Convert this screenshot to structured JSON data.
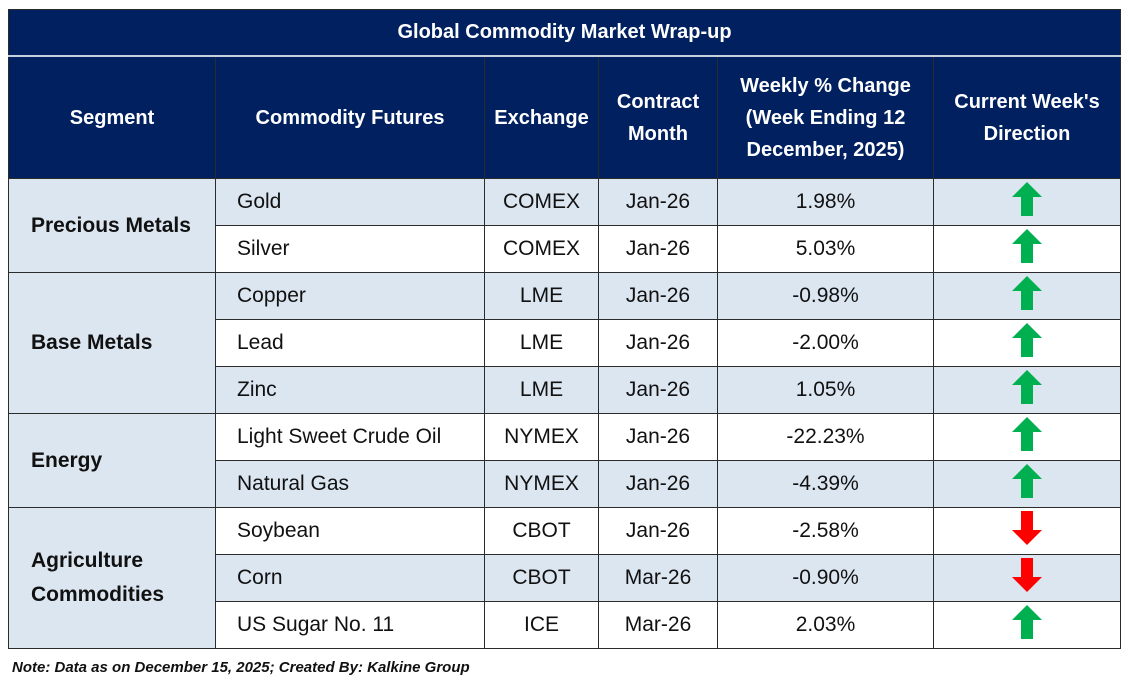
{
  "title": "Global Commodity Market Wrap-up",
  "headers": [
    "Segment",
    "Commodity Futures",
    "Exchange",
    "Contract Month",
    "Weekly % Change (Week Ending  12 December, 2025)",
    "Current Week's Direction"
  ],
  "rows": [
    {
      "segment": "Precious Metals",
      "commodity": "Gold",
      "exchange": "COMEX",
      "month": "Jan-26",
      "change": "1.98%",
      "direction": "up"
    },
    {
      "commodity": "Silver",
      "exchange": "COMEX",
      "month": "Jan-26",
      "change": "5.03%",
      "direction": "up"
    },
    {
      "segment": "Base Metals",
      "commodity": "Copper",
      "exchange": "LME",
      "month": "Jan-26",
      "change": "-0.98%",
      "direction": "up"
    },
    {
      "commodity": "Lead",
      "exchange": "LME",
      "month": "Jan-26",
      "change": "-2.00%",
      "direction": "up"
    },
    {
      "commodity": "Zinc",
      "exchange": "LME",
      "month": "Jan-26",
      "change": "1.05%",
      "direction": "up"
    },
    {
      "segment": "Energy",
      "commodity": "Light Sweet Crude Oil",
      "exchange": "NYMEX",
      "month": "Jan-26",
      "change": "-22.23%",
      "direction": "up"
    },
    {
      "commodity": "Natural Gas",
      "exchange": "NYMEX",
      "month": "Jan-26",
      "change": "-4.39%",
      "direction": "up"
    },
    {
      "segment": "Agriculture Commodities",
      "commodity": "Soybean",
      "exchange": "CBOT",
      "month": "Jan-26",
      "change": "-2.58%",
      "direction": "down"
    },
    {
      "commodity": "Corn",
      "exchange": "CBOT",
      "month": "Mar-26",
      "change": "-0.90%",
      "direction": "down"
    },
    {
      "commodity": "US Sugar No. 11",
      "exchange": "ICE",
      "month": "Mar-26",
      "change": "2.03%",
      "direction": "up"
    }
  ],
  "note": "Note: Data as on December 15, 2025; Created By: Kalkine Group",
  "colors": {
    "header": "#002060",
    "shade": "#dce6f1",
    "up": "#00b050",
    "down": "#ff0000"
  }
}
